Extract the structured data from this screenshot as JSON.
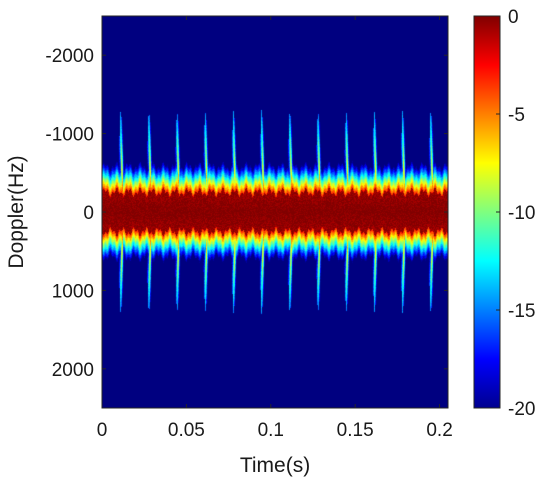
{
  "chart_data": {
    "type": "heatmap",
    "title": "",
    "xlabel": "Time(s)",
    "ylabel": "Doppler(Hz)",
    "xlim": [
      0,
      0.205
    ],
    "ylim": [
      -2500,
      2500
    ],
    "y_reversed": true,
    "x_ticks": [
      0,
      0.05,
      0.1,
      0.15,
      0.2
    ],
    "x_tick_labels": [
      "0",
      "0.05",
      "0.1",
      "0.15",
      "0.2"
    ],
    "y_ticks": [
      -2000,
      -1000,
      0,
      1000,
      2000
    ],
    "y_tick_labels": [
      "-2000",
      "-1000",
      "0",
      "1000",
      "2000"
    ],
    "colormap": "jet",
    "colorbar": {
      "range": [
        -20,
        0
      ],
      "ticks": [
        0,
        -5,
        -10,
        -15,
        -20
      ],
      "tick_labels": [
        "0",
        "-5",
        "-10",
        "-15",
        "-20"
      ]
    },
    "features": {
      "carrier_band_halfwidth_hz": 250,
      "flash_period_s": 0.0167,
      "first_flash_s": 0.011,
      "flash_count": 12,
      "flash_peak_doppler_hz": 1300,
      "flash_tail_s": 0.005
    }
  }
}
